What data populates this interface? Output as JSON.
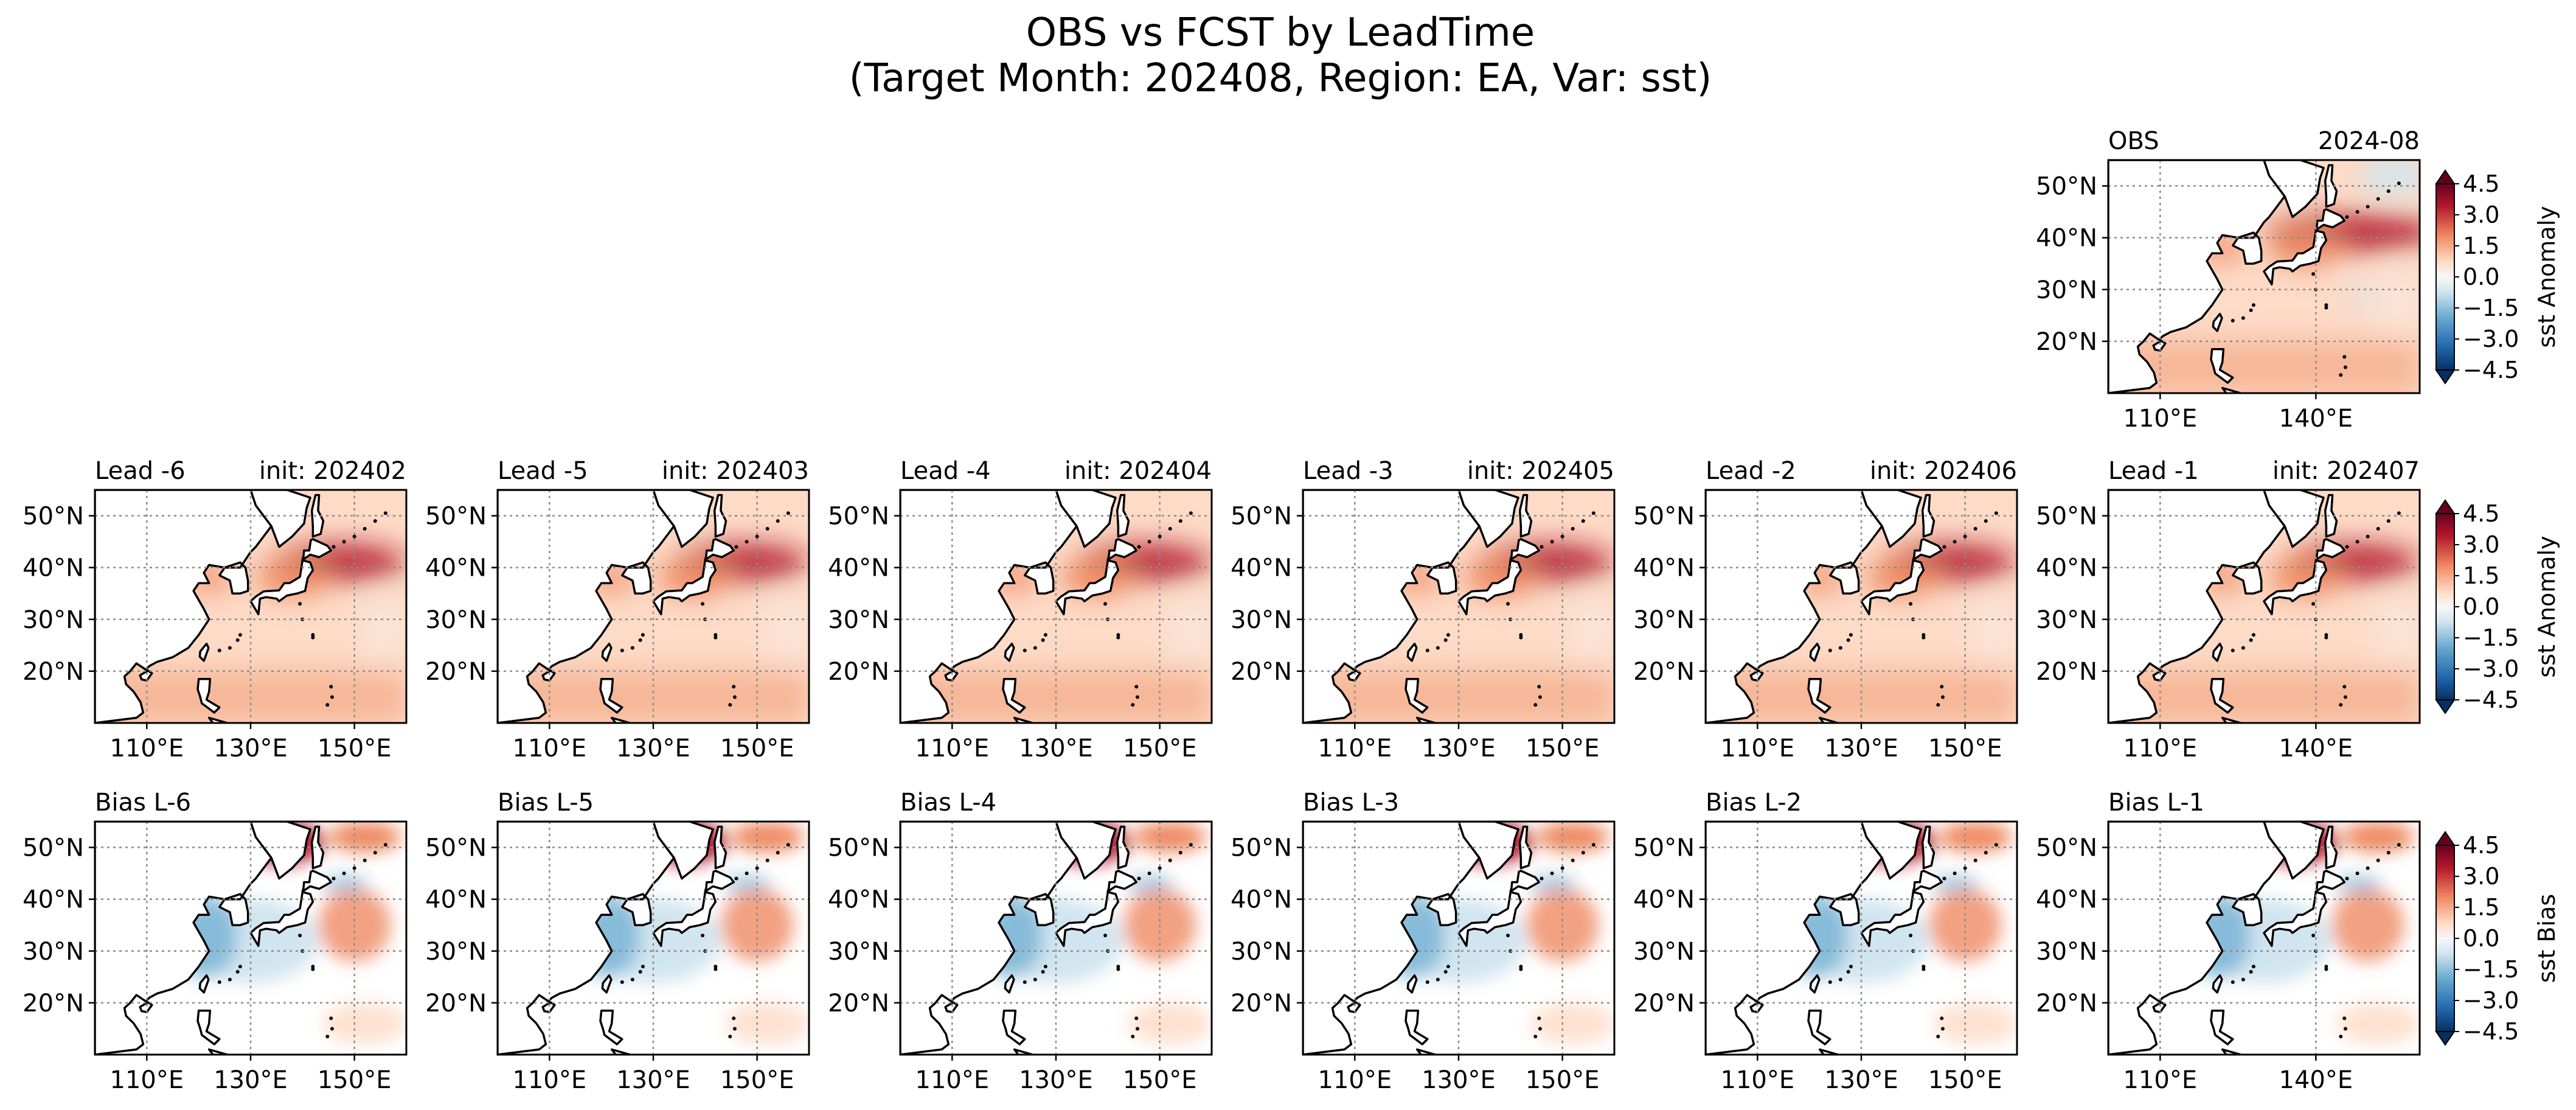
{
  "figure": {
    "title_line1": "OBS vs FCST by LeadTime",
    "title_line2": "(Target Month: 202408, Region: EA, Var: sst)"
  },
  "colors": {
    "dark_red": "#67001f",
    "red": "#b2182b",
    "light_red": "#ef8a62",
    "pink": "#fddbc7",
    "white": "#f7f7f7",
    "light_blue": "#d1e5f0",
    "blue": "#67a9cf",
    "dark_blue": "#2166ac",
    "navy": "#053061"
  },
  "chart_data": [
    {
      "type": "heatmap",
      "id": "obs",
      "title_left": "OBS",
      "title_right": "2024-08",
      "xticks": [
        "110°E",
        "140°E"
      ],
      "yticks": [
        "50°N",
        "40°N",
        "30°N",
        "20°N"
      ],
      "lon_range": [
        100,
        160
      ],
      "lat_range": [
        10,
        55
      ],
      "field": "obs",
      "grid": true
    },
    {
      "type": "heatmap",
      "id": "lead6",
      "title_left": "Lead -6",
      "title_right": "init: 202402",
      "xticks": [
        "110°E",
        "130°E",
        "150°E"
      ],
      "yticks": [
        "50°N",
        "40°N",
        "30°N",
        "20°N"
      ],
      "lon_range": [
        100,
        160
      ],
      "lat_range": [
        10,
        55
      ],
      "field": "fcst",
      "grid": true
    },
    {
      "type": "heatmap",
      "id": "lead5",
      "title_left": "Lead -5",
      "title_right": "init: 202403",
      "xticks": [
        "110°E",
        "130°E",
        "150°E"
      ],
      "yticks": [
        "50°N",
        "40°N",
        "30°N",
        "20°N"
      ],
      "lon_range": [
        100,
        160
      ],
      "lat_range": [
        10,
        55
      ],
      "field": "fcst",
      "grid": true
    },
    {
      "type": "heatmap",
      "id": "lead4",
      "title_left": "Lead -4",
      "title_right": "init: 202404",
      "xticks": [
        "110°E",
        "130°E",
        "150°E"
      ],
      "yticks": [
        "50°N",
        "40°N",
        "30°N",
        "20°N"
      ],
      "lon_range": [
        100,
        160
      ],
      "lat_range": [
        10,
        55
      ],
      "field": "fcst",
      "grid": true
    },
    {
      "type": "heatmap",
      "id": "lead3",
      "title_left": "Lead -3",
      "title_right": "init: 202405",
      "xticks": [
        "110°E",
        "130°E",
        "150°E"
      ],
      "yticks": [
        "50°N",
        "40°N",
        "30°N",
        "20°N"
      ],
      "lon_range": [
        100,
        160
      ],
      "lat_range": [
        10,
        55
      ],
      "field": "fcst",
      "grid": true
    },
    {
      "type": "heatmap",
      "id": "lead2",
      "title_left": "Lead -2",
      "title_right": "init: 202406",
      "xticks": [
        "110°E",
        "130°E",
        "150°E"
      ],
      "yticks": [
        "50°N",
        "40°N",
        "30°N",
        "20°N"
      ],
      "lon_range": [
        100,
        160
      ],
      "lat_range": [
        10,
        55
      ],
      "field": "fcst",
      "grid": true
    },
    {
      "type": "heatmap",
      "id": "lead1",
      "title_left": "Lead -1",
      "title_right": "init: 202407",
      "xticks": [
        "110°E",
        "140°E"
      ],
      "yticks": [
        "50°N",
        "40°N",
        "30°N",
        "20°N"
      ],
      "lon_range": [
        100,
        160
      ],
      "lat_range": [
        10,
        55
      ],
      "field": "fcst",
      "grid": true
    },
    {
      "type": "heatmap",
      "id": "bias6",
      "title_left": "Bias L-6",
      "title_right": "",
      "xticks": [
        "110°E",
        "130°E",
        "150°E"
      ],
      "yticks": [
        "50°N",
        "40°N",
        "30°N",
        "20°N"
      ],
      "lon_range": [
        100,
        160
      ],
      "lat_range": [
        10,
        55
      ],
      "field": "bias",
      "grid": true
    },
    {
      "type": "heatmap",
      "id": "bias5",
      "title_left": "Bias L-5",
      "title_right": "",
      "xticks": [
        "110°E",
        "130°E",
        "150°E"
      ],
      "yticks": [
        "50°N",
        "40°N",
        "30°N",
        "20°N"
      ],
      "lon_range": [
        100,
        160
      ],
      "lat_range": [
        10,
        55
      ],
      "field": "bias",
      "grid": true
    },
    {
      "type": "heatmap",
      "id": "bias4",
      "title_left": "Bias L-4",
      "title_right": "",
      "xticks": [
        "110°E",
        "130°E",
        "150°E"
      ],
      "yticks": [
        "50°N",
        "40°N",
        "30°N",
        "20°N"
      ],
      "lon_range": [
        100,
        160
      ],
      "lat_range": [
        10,
        55
      ],
      "field": "bias",
      "grid": true
    },
    {
      "type": "heatmap",
      "id": "bias3",
      "title_left": "Bias L-3",
      "title_right": "",
      "xticks": [
        "110°E",
        "130°E",
        "150°E"
      ],
      "yticks": [
        "50°N",
        "40°N",
        "30°N",
        "20°N"
      ],
      "lon_range": [
        100,
        160
      ],
      "lat_range": [
        10,
        55
      ],
      "field": "bias",
      "grid": true
    },
    {
      "type": "heatmap",
      "id": "bias2",
      "title_left": "Bias L-2",
      "title_right": "",
      "xticks": [
        "110°E",
        "130°E",
        "150°E"
      ],
      "yticks": [
        "50°N",
        "40°N",
        "30°N",
        "20°N"
      ],
      "lon_range": [
        100,
        160
      ],
      "lat_range": [
        10,
        55
      ],
      "field": "bias",
      "grid": true
    },
    {
      "type": "heatmap",
      "id": "bias1",
      "title_left": "Bias L-1",
      "title_right": "",
      "xticks": [
        "110°E",
        "140°E"
      ],
      "yticks": [
        "50°N",
        "40°N",
        "30°N",
        "20°N"
      ],
      "lon_range": [
        100,
        160
      ],
      "lat_range": [
        10,
        55
      ],
      "field": "bias",
      "grid": true
    }
  ],
  "colorbars": [
    {
      "id": "cb-obs",
      "label": "sst Anomaly",
      "ticks": [
        "4.5",
        "3.0",
        "1.5",
        "0.0",
        "−1.5",
        "−3.0",
        "−4.5"
      ],
      "range": [
        -4.5,
        4.5
      ],
      "extend": "both"
    },
    {
      "id": "cb-fcst",
      "label": "sst Anomaly",
      "ticks": [
        "4.5",
        "3.0",
        "1.5",
        "0.0",
        "−1.5",
        "−3.0",
        "−4.5"
      ],
      "range": [
        -4.5,
        4.5
      ],
      "extend": "both"
    },
    {
      "id": "cb-bias",
      "label": "sst Bias",
      "ticks": [
        "4.5",
        "3.0",
        "1.5",
        "0.0",
        "−1.5",
        "−3.0",
        "−4.5"
      ],
      "range": [
        -4.5,
        4.5
      ],
      "extend": "both"
    }
  ]
}
